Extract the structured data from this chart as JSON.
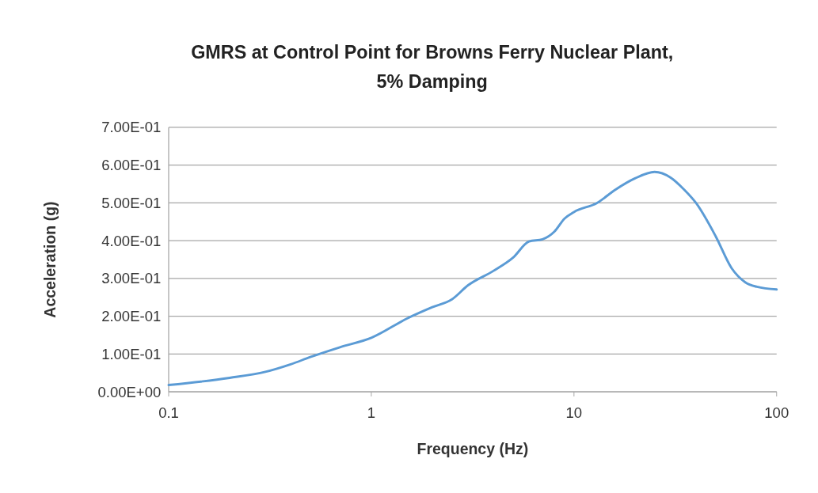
{
  "chart_data": {
    "type": "line",
    "title": "GMRS at Control Point for Browns Ferry Nuclear Plant, 5% Damping",
    "xlabel": "Frequency (Hz)",
    "ylabel": "Acceleration (g)",
    "log": "x",
    "grid": "y",
    "xlim": [
      0.1,
      100
    ],
    "xticks": [
      0.1,
      1,
      10,
      100
    ],
    "ylim": [
      0,
      0.7
    ],
    "yticks": [
      {
        "value": 0,
        "label": "0.00E+00"
      },
      {
        "value": 0.1,
        "label": "1.00E-01"
      },
      {
        "value": 0.2,
        "label": "2.00E-01"
      },
      {
        "value": 0.3,
        "label": "3.00E-01"
      },
      {
        "value": 0.4,
        "label": "4.00E-01"
      },
      {
        "value": 0.5,
        "label": "5.00E-01"
      },
      {
        "value": 0.6,
        "label": "6.00E-01"
      },
      {
        "value": 0.7,
        "label": "7.00E-01"
      }
    ],
    "x": [
      0.1,
      0.2,
      0.3,
      0.4,
      0.5,
      0.7,
      1,
      1.5,
      2,
      2.5,
      3,
      4,
      5,
      6,
      7,
      8,
      9,
      10,
      13,
      16,
      20,
      25,
      30,
      35,
      40,
      50,
      60,
      70,
      80,
      100
    ],
    "series": [
      {
        "color": "#5b9bd5",
        "values": [
          0.018,
          0.037,
          0.053,
          0.073,
          0.092,
          0.118,
          0.143,
          0.194,
          0.224,
          0.245,
          0.282,
          0.32,
          0.355,
          0.398,
          0.404,
          0.424,
          0.459,
          0.476,
          0.5,
          0.535,
          0.565,
          0.582,
          0.567,
          0.535,
          0.5,
          0.412,
          0.327,
          0.29,
          0.278,
          0.271
        ]
      }
    ]
  }
}
